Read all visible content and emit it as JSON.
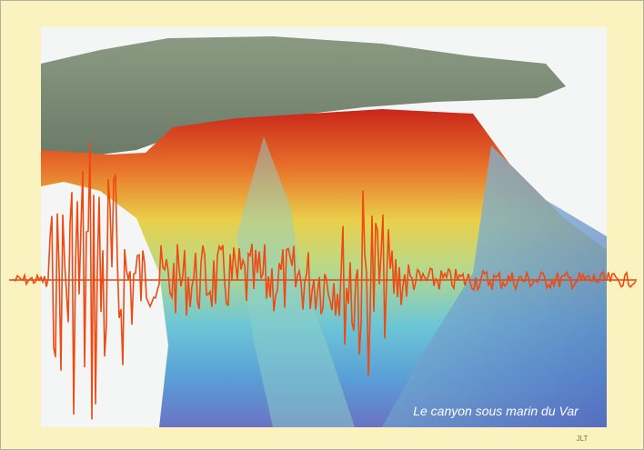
{
  "image": {
    "caption": "Le canyon sous marin du Var",
    "signature": "JLT"
  }
}
